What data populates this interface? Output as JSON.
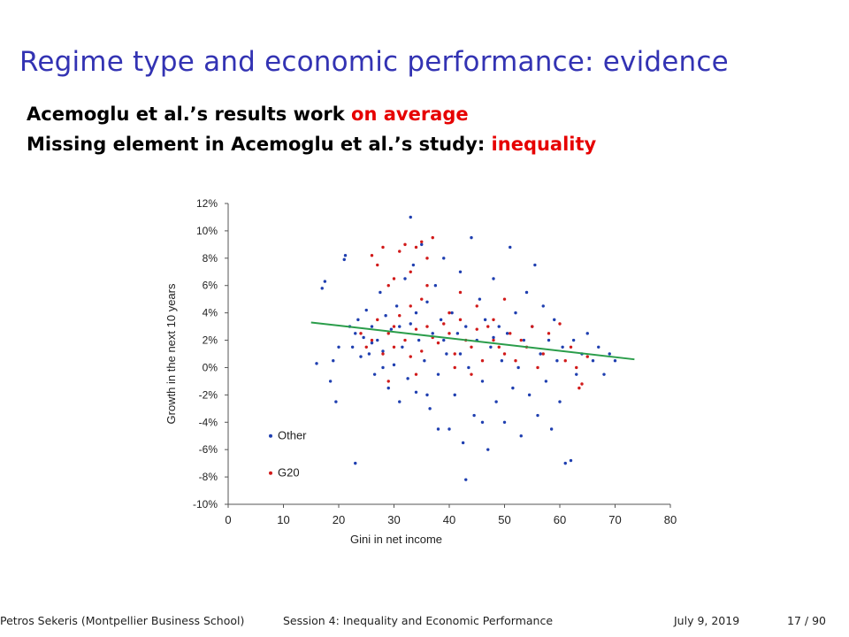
{
  "slide": {
    "title": "Regime type and economic performance: evidence",
    "line1_text": "Acemoglu et al.’s results work ",
    "line1_highlight": "on average",
    "line2_text": "Missing element in Acemoglu et al.’s study: ",
    "line2_highlight": "inequality",
    "highlight_color": "#e60000",
    "title_color": "#3333b3"
  },
  "footer": {
    "author": "Petros Sekeris  (Montpellier Business School)",
    "session": "Session 4: Inequality and Economic Performance",
    "date": "July 9, 2019",
    "page": "17 / 90"
  },
  "chart_data": {
    "type": "scatter",
    "xlabel": "Gini in net income",
    "ylabel": "Growth in the next 10 years",
    "xlim": [
      0,
      80
    ],
    "ylim": [
      -10,
      12
    ],
    "xticks": [
      "0",
      "10",
      "20",
      "30",
      "40",
      "50",
      "60",
      "70",
      "80"
    ],
    "yticks": [
      "-10%",
      "-8%",
      "-6%",
      "-4%",
      "-2%",
      "0%",
      "2%",
      "4%",
      "6%",
      "8%",
      "10%",
      "12%"
    ],
    "legend_position": "bottom-left",
    "series": [
      {
        "name": "Other",
        "color": "#1f3fb0",
        "points": [
          [
            17,
            5.8
          ],
          [
            17.5,
            6.3
          ],
          [
            21,
            7.9
          ],
          [
            21.2,
            8.2
          ],
          [
            20,
            1.5
          ],
          [
            19,
            0.5
          ],
          [
            18.5,
            -1.0
          ],
          [
            19.5,
            -2.5
          ],
          [
            16,
            0.3
          ],
          [
            22,
            3.0
          ],
          [
            22.5,
            1.5
          ],
          [
            23,
            2.5
          ],
          [
            23.5,
            3.5
          ],
          [
            24,
            0.8
          ],
          [
            24.5,
            2.2
          ],
          [
            25,
            4.2
          ],
          [
            25.5,
            1.0
          ],
          [
            26,
            3.0
          ],
          [
            26.5,
            -0.5
          ],
          [
            27,
            2.0
          ],
          [
            27.5,
            5.5
          ],
          [
            28,
            1.2
          ],
          [
            28.5,
            3.8
          ],
          [
            29,
            -1.5
          ],
          [
            29.5,
            2.8
          ],
          [
            30,
            0.2
          ],
          [
            30.5,
            4.5
          ],
          [
            31,
            -2.5
          ],
          [
            31.5,
            1.5
          ],
          [
            32,
            6.5
          ],
          [
            32.5,
            -0.8
          ],
          [
            33,
            3.2
          ],
          [
            33.5,
            7.5
          ],
          [
            34,
            -1.8
          ],
          [
            34.5,
            2.0
          ],
          [
            35,
            9.0
          ],
          [
            35.5,
            0.5
          ],
          [
            36,
            4.8
          ],
          [
            36.5,
            -3.0
          ],
          [
            37,
            2.5
          ],
          [
            37.5,
            6.0
          ],
          [
            38,
            -0.5
          ],
          [
            38.5,
            3.5
          ],
          [
            39,
            8.0
          ],
          [
            39.5,
            1.0
          ],
          [
            40,
            -4.5
          ],
          [
            40.5,
            4.0
          ],
          [
            41,
            -2.0
          ],
          [
            41.5,
            2.5
          ],
          [
            42,
            7.0
          ],
          [
            42.5,
            -5.5
          ],
          [
            43,
            3.0
          ],
          [
            43.5,
            0.0
          ],
          [
            44,
            9.5
          ],
          [
            44.5,
            -3.5
          ],
          [
            45,
            2.0
          ],
          [
            45.5,
            5.0
          ],
          [
            46,
            -1.0
          ],
          [
            46.5,
            3.5
          ],
          [
            47,
            -6.0
          ],
          [
            47.5,
            1.5
          ],
          [
            48,
            6.5
          ],
          [
            48.5,
            -2.5
          ],
          [
            49,
            3.0
          ],
          [
            49.5,
            0.5
          ],
          [
            50,
            -4.0
          ],
          [
            50.5,
            2.5
          ],
          [
            51,
            8.8
          ],
          [
            51.5,
            -1.5
          ],
          [
            52,
            4.0
          ],
          [
            52.5,
            0.0
          ],
          [
            53,
            -5.0
          ],
          [
            53.5,
            2.0
          ],
          [
            54,
            5.5
          ],
          [
            54.5,
            -2.0
          ],
          [
            55,
            3.0
          ],
          [
            55.5,
            7.5
          ],
          [
            56,
            -3.5
          ],
          [
            56.5,
            1.0
          ],
          [
            57,
            4.5
          ],
          [
            57.5,
            -1.0
          ],
          [
            58,
            2.0
          ],
          [
            58.5,
            -4.5
          ],
          [
            59,
            3.5
          ],
          [
            59.5,
            0.5
          ],
          [
            60,
            -2.5
          ],
          [
            60.5,
            1.5
          ],
          [
            61,
            -7.0
          ],
          [
            62,
            -6.8
          ],
          [
            62.5,
            2.0
          ],
          [
            63,
            -0.5
          ],
          [
            64,
            1.0
          ],
          [
            65,
            2.5
          ],
          [
            66,
            0.5
          ],
          [
            67,
            1.5
          ],
          [
            68,
            -0.5
          ],
          [
            69,
            1.0
          ],
          [
            70,
            0.5
          ],
          [
            23,
            -7.0
          ],
          [
            43,
            -8.2
          ],
          [
            33,
            11.0
          ],
          [
            38,
            -4.5
          ],
          [
            46,
            -4.0
          ],
          [
            36,
            -2.0
          ],
          [
            34,
            4.0
          ],
          [
            28,
            0.0
          ],
          [
            26,
            1.8
          ],
          [
            31,
            3.0
          ],
          [
            39,
            2.0
          ],
          [
            42,
            1.0
          ],
          [
            48,
            2.2
          ]
        ]
      },
      {
        "name": "G20",
        "color": "#d11a1a",
        "points": [
          [
            26,
            8.2
          ],
          [
            27,
            7.5
          ],
          [
            28,
            8.8
          ],
          [
            29,
            6.0
          ],
          [
            30,
            3.0
          ],
          [
            31,
            8.5
          ],
          [
            32,
            9.0
          ],
          [
            33,
            7.0
          ],
          [
            34,
            8.8
          ],
          [
            35,
            9.2
          ],
          [
            36,
            8.0
          ],
          [
            37,
            9.5
          ],
          [
            26,
            2.0
          ],
          [
            27,
            3.5
          ],
          [
            28,
            1.0
          ],
          [
            29,
            2.5
          ],
          [
            30,
            1.5
          ],
          [
            31,
            3.8
          ],
          [
            32,
            2.0
          ],
          [
            33,
            0.8
          ],
          [
            34,
            2.8
          ],
          [
            35,
            1.2
          ],
          [
            36,
            3.0
          ],
          [
            37,
            2.2
          ],
          [
            38,
            1.8
          ],
          [
            39,
            3.2
          ],
          [
            40,
            2.5
          ],
          [
            41,
            1.0
          ],
          [
            42,
            3.5
          ],
          [
            43,
            2.0
          ],
          [
            44,
            1.5
          ],
          [
            45,
            2.8
          ],
          [
            46,
            0.5
          ],
          [
            47,
            3.0
          ],
          [
            48,
            2.0
          ],
          [
            49,
            1.5
          ],
          [
            50,
            1.0
          ],
          [
            51,
            2.5
          ],
          [
            52,
            0.5
          ],
          [
            53,
            2.0
          ],
          [
            54,
            1.5
          ],
          [
            55,
            3.0
          ],
          [
            56,
            0.0
          ],
          [
            57,
            1.0
          ],
          [
            58,
            2.5
          ],
          [
            60,
            3.2
          ],
          [
            61,
            0.5
          ],
          [
            62,
            1.5
          ],
          [
            63,
            0.0
          ],
          [
            64,
            -1.2
          ],
          [
            63.5,
            -1.5
          ],
          [
            65,
            0.8
          ],
          [
            24,
            2.5
          ],
          [
            25,
            1.5
          ],
          [
            33,
            4.5
          ],
          [
            35,
            5.0
          ],
          [
            40,
            4.0
          ],
          [
            42,
            5.5
          ],
          [
            45,
            4.5
          ],
          [
            29,
            -1.0
          ],
          [
            34,
            -0.5
          ],
          [
            30,
            6.5
          ],
          [
            36,
            6.0
          ],
          [
            41,
            0.0
          ],
          [
            44,
            -0.5
          ],
          [
            48,
            3.5
          ],
          [
            50,
            5.0
          ]
        ]
      }
    ],
    "trendline": {
      "color": "#2a9d4a",
      "x": [
        15,
        73.5
      ],
      "y": [
        3.3,
        0.6
      ]
    }
  }
}
